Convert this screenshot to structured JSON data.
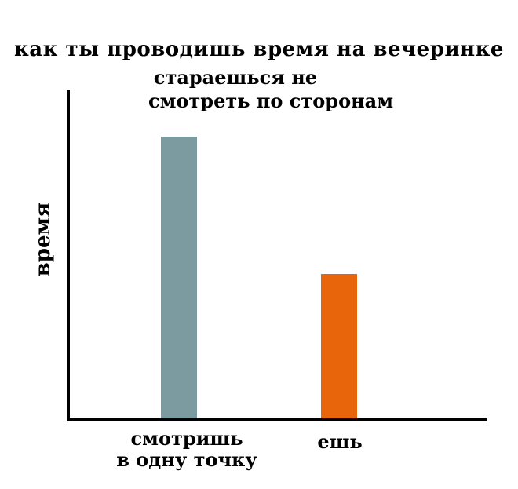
{
  "chart_data": {
    "type": "bar",
    "title": "как ты проводишь время на вечеринке",
    "annotation_lines": {
      "line1": "стараешься не",
      "line2": "смотреть по сторонам"
    },
    "ylabel": "время",
    "xlabel": "",
    "categories": [
      "смотришь\nв одну точку",
      "ешь"
    ],
    "values": [
      86,
      44
    ],
    "ylim": [
      0,
      100
    ],
    "bar_colors": [
      "#7b9ba0",
      "#e8650c"
    ],
    "axis_color": "#000000",
    "background_color": "#ffffff",
    "grid": false,
    "legend": false,
    "tick_labels_visible": false
  }
}
